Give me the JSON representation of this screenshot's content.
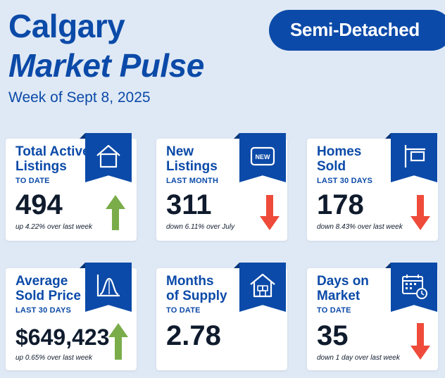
{
  "header": {
    "title_line1": "Calgary",
    "title_line2": "Market Pulse",
    "subtitle": "Week of Sept 8, 2025",
    "badge": "Semi-Detached"
  },
  "colors": {
    "brand_blue": "#0b4aa8",
    "background": "#dfe9f5",
    "up_arrow": "#7aad4a",
    "down_arrow": "#ef4b3a"
  },
  "cards": [
    {
      "heading_line1": "Total Active",
      "heading_line2": "Listings",
      "period": "TO DATE",
      "value": "494",
      "change": "up 4.22% over last week",
      "trend": "up",
      "icon": "house-icon"
    },
    {
      "heading_line1": "New",
      "heading_line2": "Listings",
      "period": "LAST MONTH",
      "value": "311",
      "change": "down 6.11% over July",
      "trend": "down",
      "icon": "new-tag-icon",
      "icon_text": "NEW"
    },
    {
      "heading_line1": "Homes",
      "heading_line2": "Sold",
      "period": "LAST 30 DAYS",
      "value": "178",
      "change": "down 8.43% over last week",
      "trend": "down",
      "icon": "sold-sign-icon"
    },
    {
      "heading_line1": "Average",
      "heading_line2": "Sold Price",
      "period": "LAST 30 DAYS",
      "value": "$649,423",
      "change": "up 0.65% over last week",
      "trend": "up",
      "icon": "bell-curve-chart-icon"
    },
    {
      "heading_line1": "Months",
      "heading_line2": "of Supply",
      "period": "TO DATE",
      "value": "2.78",
      "change": "",
      "trend": "none",
      "icon": "house-boxes-icon"
    },
    {
      "heading_line1": "Days on",
      "heading_line2": "Market",
      "period": "TO DATE",
      "value": "35",
      "change": "down 1 day over last week",
      "trend": "down",
      "icon": "calendar-clock-icon"
    }
  ]
}
